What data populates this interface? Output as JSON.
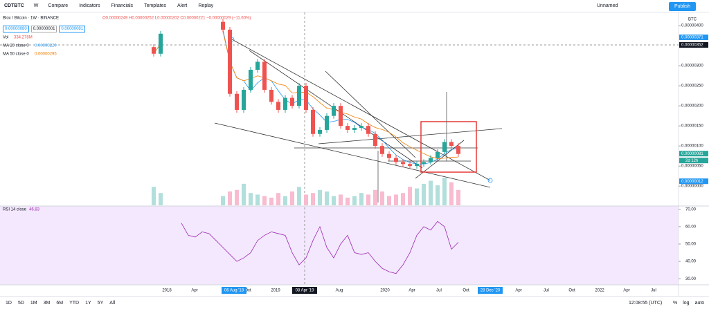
{
  "toolbar": {
    "symbol": "CDTBTC",
    "interval": "W",
    "buttons": [
      "Compare",
      "Indicators",
      "Financials",
      "Templates",
      "Alert",
      "Replay"
    ],
    "layout": "Unnamed",
    "publish": "Publish"
  },
  "legend": {
    "title": "Blox / Bitcoin · 1W · BINANCE",
    "ohlc": "O0.00000249 H0.00000252 L0.00000202 C0.00000221 −0.00000029 (−11.60%)",
    "inputs": [
      "0.00000080",
      "0.00000001",
      "0.00000081"
    ],
    "vol_label": "Vol",
    "vol_value": "334.278M",
    "ma20_label": "MA 20 close 0",
    "ma20_value": "0.00000220",
    "ma50_label": "MA 50 close 0",
    "ma50_value": "0.00000295",
    "rsi_label": "RSI 14 close",
    "rsi_value": "46.83"
  },
  "chart_data": {
    "type": "candlestick",
    "currency": "BTC",
    "closes": [
      3.3e-06,
      3.8e-06,
      null,
      null,
      null,
      null,
      null,
      null,
      null,
      null,
      3.9e-06,
      2.3e-06,
      1.9e-06,
      2.4e-06,
      2.9e-06,
      3.1e-06,
      2.4e-06,
      2.1e-06,
      1.9e-06,
      2.2e-06,
      2e-06,
      2.5e-06,
      1.9e-06,
      1.3e-06,
      1.4e-06,
      1.75e-06,
      2e-06,
      1.5e-06,
      1.4e-06,
      1.45e-06,
      1.5e-06,
      1.3e-06,
      1e-06,
      8e-07,
      7e-07,
      6e-07,
      5.5e-07,
      5e-07,
      5.5e-07,
      6e-07,
      7e-07,
      8.5e-07,
      1.1e-06,
      1e-06,
      8e-07
    ],
    "volumes": [
      60,
      40,
      null,
      null,
      null,
      null,
      null,
      null,
      null,
      null,
      30,
      45,
      50,
      70,
      40,
      35,
      30,
      25,
      40,
      30,
      45,
      60,
      35,
      40,
      50,
      45,
      30,
      35,
      25,
      30,
      40,
      35,
      50,
      45,
      30,
      35,
      40,
      60,
      55,
      70,
      80,
      65,
      90,
      75,
      50
    ],
    "rsi": [
      null,
      null,
      null,
      null,
      62,
      55,
      54,
      57,
      56,
      52,
      48,
      44,
      40,
      42,
      45,
      52,
      55,
      57,
      56,
      55,
      45,
      38,
      42,
      52,
      60,
      48,
      42,
      50,
      55,
      45,
      44,
      45,
      40,
      36,
      34,
      33,
      38,
      45,
      55,
      60,
      58,
      63,
      60,
      47,
      51
    ],
    "ylim": [
      -4.8e-07,
      4.33e-06
    ],
    "yticks": [
      {
        "value": 4e-06,
        "label": "0.00000400"
      },
      {
        "value": 3e-06,
        "label": "0.00000300"
      },
      {
        "value": 2.5e-06,
        "label": "0.00000250"
      },
      {
        "value": 2e-06,
        "label": "0.00000200"
      },
      {
        "value": 1.5e-06,
        "label": "0.00000150"
      },
      {
        "value": 1e-06,
        "label": "0.00000100"
      },
      {
        "value": 5e-07,
        "label": "0.00000050"
      },
      {
        "value": 0,
        "label": "0.00000000"
      }
    ],
    "tags": [
      {
        "value": 3.71e-06,
        "label": "0.00000371"
      },
      {
        "value": 3.52e-06,
        "label": "0.00000352"
      },
      {
        "value": 8.1e-07,
        "label": "0.00000081"
      },
      {
        "value": 1.2e-07,
        "label": "0.00000012"
      }
    ],
    "countdown": "2d 12h",
    "rsi_ylim": [
      26.5,
      71.9
    ],
    "rsi_ticks": [
      {
        "value": 70,
        "label": "70.00"
      },
      {
        "value": 60,
        "label": "60.00"
      },
      {
        "value": 50,
        "label": "50.00"
      },
      {
        "value": 40,
        "label": "40.00"
      },
      {
        "value": 30,
        "label": "30.00"
      }
    ],
    "time_labels": [
      "2018",
      "Apr",
      "Oct",
      "2019",
      "Aug",
      "2020",
      "Apr",
      "Jul",
      "Oct",
      "Apr",
      "Jul",
      "Oct",
      "2022",
      "Apr",
      "Jul"
    ],
    "time_highlights": [
      "06 Aug '18",
      "08 Apr '19",
      "28 Dec '20"
    ]
  },
  "bottom": {
    "ranges": [
      "1D",
      "5D",
      "1M",
      "3M",
      "6M",
      "YTD",
      "1Y",
      "5Y",
      "All"
    ],
    "clock": "12:08:55 (UTC)",
    "options": [
      "%",
      "log",
      "auto"
    ]
  }
}
